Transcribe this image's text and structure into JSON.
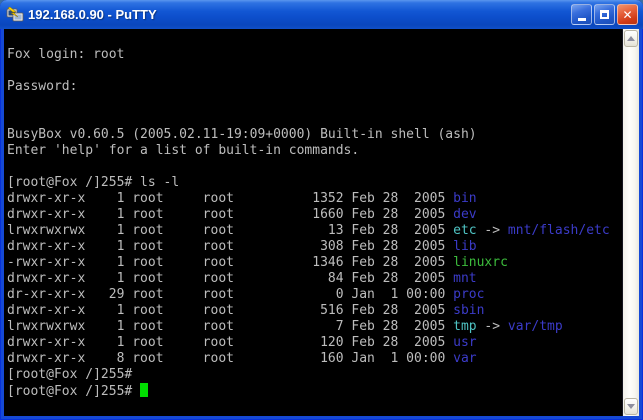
{
  "window": {
    "title": "192.168.0.90 - PuTTY",
    "app": "PuTTY",
    "controls": {
      "minimize": "minimize",
      "maximize": "maximize",
      "close": "close"
    }
  },
  "colors": {
    "background": "#000000",
    "foreground": "#bdbdbd",
    "directory": "#3b3bc8",
    "symlink": "#4fc4c4",
    "executable": "#3cbc3c",
    "cursor": "#00dd00",
    "titlebar_accent": "#1257d4",
    "close_button": "#d03a16"
  },
  "terminal": {
    "lines": [
      {
        "segments": [
          {
            "t": "Fox login: root",
            "c": "fg"
          }
        ]
      },
      {
        "segments": []
      },
      {
        "segments": [
          {
            "t": "Password:",
            "c": "fg"
          }
        ]
      },
      {
        "segments": []
      },
      {
        "segments": []
      },
      {
        "segments": [
          {
            "t": "BusyBox v0.60.5 (2005.02.11-19:09+0000) Built-in shell (ash)",
            "c": "fg"
          }
        ]
      },
      {
        "segments": [
          {
            "t": "Enter 'help' for a list of built-in commands.",
            "c": "fg"
          }
        ]
      },
      {
        "segments": []
      },
      {
        "segments": [
          {
            "t": "[root@Fox /]255# ls -l",
            "c": "fg"
          }
        ]
      },
      {
        "segments": [
          {
            "t": "drwxr-xr-x    1 root     root          1352 Feb 28  2005 ",
            "c": "fg"
          },
          {
            "t": "bin",
            "c": "dir"
          }
        ]
      },
      {
        "segments": [
          {
            "t": "drwxr-xr-x    1 root     root          1660 Feb 28  2005 ",
            "c": "fg"
          },
          {
            "t": "dev",
            "c": "dir"
          }
        ]
      },
      {
        "segments": [
          {
            "t": "lrwxrwxrwx    1 root     root            13 Feb 28  2005 ",
            "c": "fg"
          },
          {
            "t": "etc",
            "c": "lnk"
          },
          {
            "t": " -> ",
            "c": "fg"
          },
          {
            "t": "mnt/flash/etc",
            "c": "dir"
          }
        ]
      },
      {
        "segments": [
          {
            "t": "drwxr-xr-x    1 root     root           308 Feb 28  2005 ",
            "c": "fg"
          },
          {
            "t": "lib",
            "c": "dir"
          }
        ]
      },
      {
        "segments": [
          {
            "t": "-rwxr-xr-x    1 root     root          1346 Feb 28  2005 ",
            "c": "fg"
          },
          {
            "t": "linuxrc",
            "c": "exe"
          }
        ]
      },
      {
        "segments": [
          {
            "t": "drwxr-xr-x    1 root     root            84 Feb 28  2005 ",
            "c": "fg"
          },
          {
            "t": "mnt",
            "c": "dir"
          }
        ]
      },
      {
        "segments": [
          {
            "t": "dr-xr-xr-x   29 root     root             0 Jan  1 00:00 ",
            "c": "fg"
          },
          {
            "t": "proc",
            "c": "dir"
          }
        ]
      },
      {
        "segments": [
          {
            "t": "drwxr-xr-x    1 root     root           516 Feb 28  2005 ",
            "c": "fg"
          },
          {
            "t": "sbin",
            "c": "dir"
          }
        ]
      },
      {
        "segments": [
          {
            "t": "lrwxrwxrwx    1 root     root             7 Feb 28  2005 ",
            "c": "fg"
          },
          {
            "t": "tmp",
            "c": "lnk"
          },
          {
            "t": " -> ",
            "c": "fg"
          },
          {
            "t": "var/tmp",
            "c": "dir"
          }
        ]
      },
      {
        "segments": [
          {
            "t": "drwxr-xr-x    1 root     root           120 Feb 28  2005 ",
            "c": "fg"
          },
          {
            "t": "usr",
            "c": "dir"
          }
        ]
      },
      {
        "segments": [
          {
            "t": "drwxr-xr-x    8 root     root           160 Jan  1 00:00 ",
            "c": "fg"
          },
          {
            "t": "var",
            "c": "dir"
          }
        ]
      },
      {
        "segments": [
          {
            "t": "[root@Fox /]255#",
            "c": "fg"
          }
        ]
      },
      {
        "segments": [
          {
            "t": "[root@Fox /]255# ",
            "c": "fg"
          }
        ],
        "cursor": true
      }
    ]
  },
  "scrollbar": {
    "up_icon": "scroll-up-arrow",
    "down_icon": "scroll-down-arrow"
  }
}
